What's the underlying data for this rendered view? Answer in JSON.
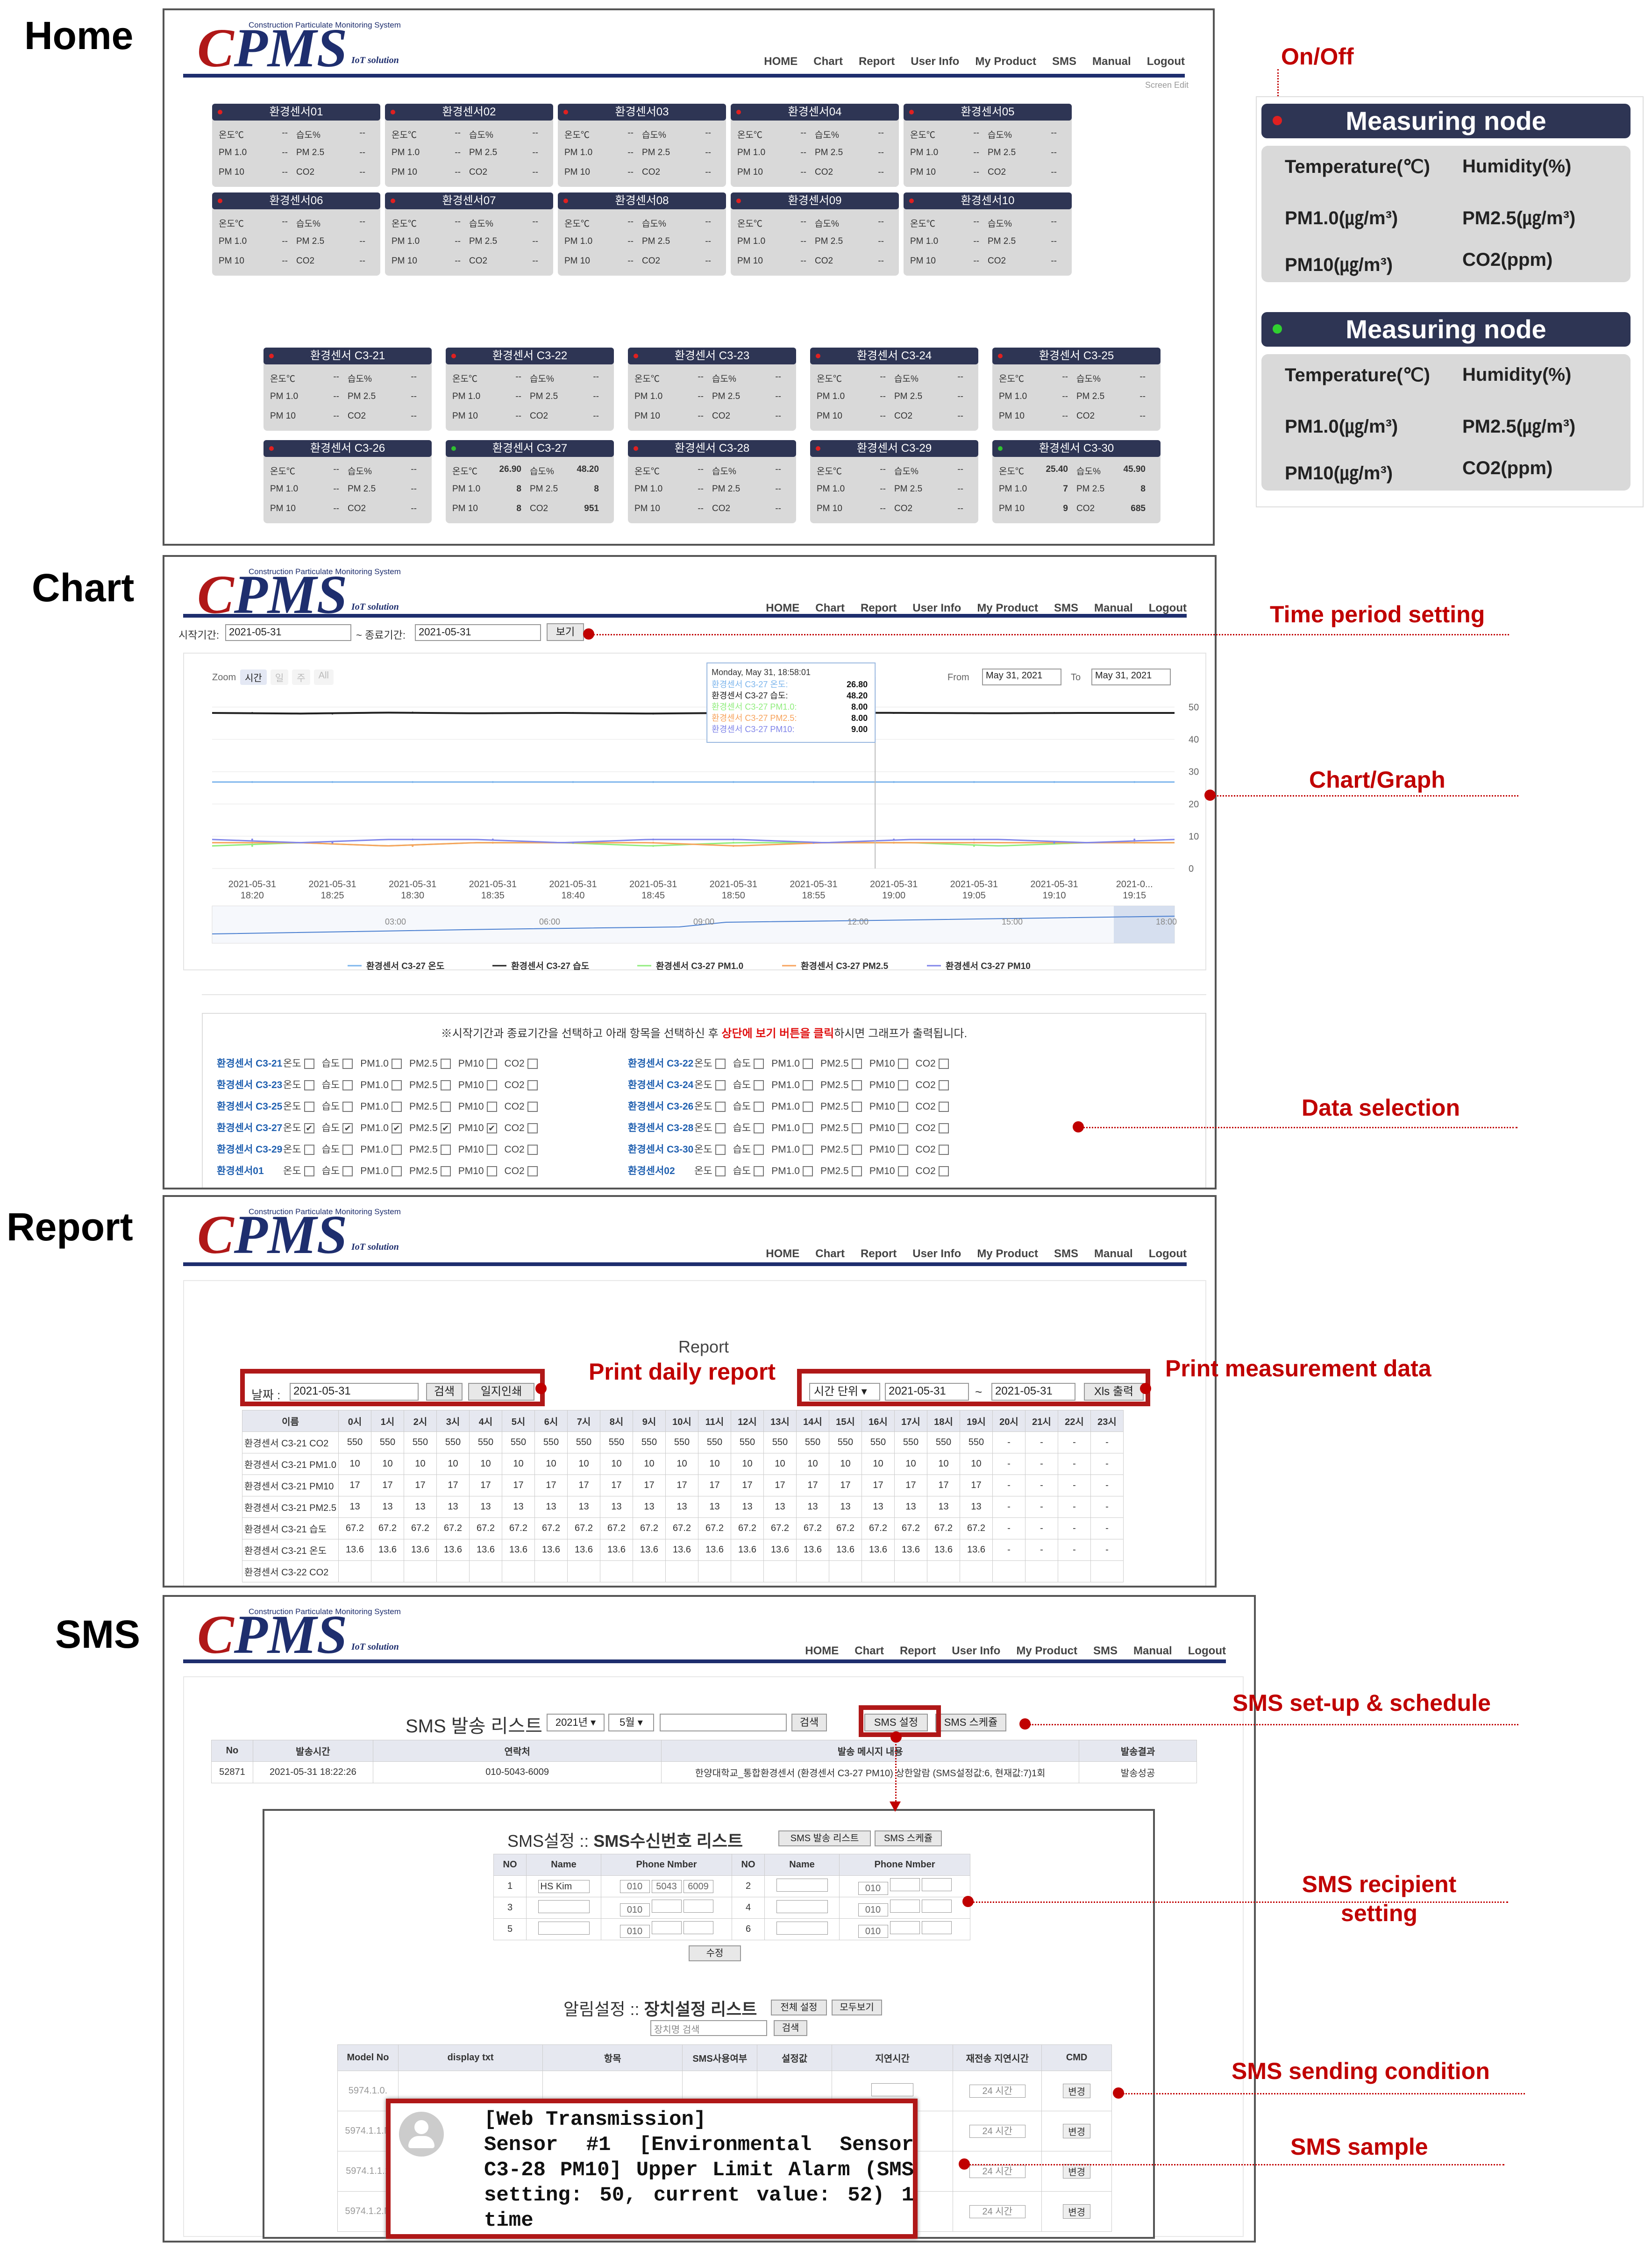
{
  "sections": {
    "home": "Home",
    "chart": "Chart",
    "report": "Report",
    "sms": "SMS"
  },
  "app": {
    "logo_letters": "CPMS",
    "logo_tagline": "Construction Particulate Monitoring System",
    "logo_iot": "IoT solution",
    "nav": [
      "HOME",
      "Chart",
      "Report",
      "User Info",
      "My Product",
      "SMS",
      "Manual",
      "Logout"
    ],
    "screen_edit": "Screen Edit"
  },
  "home": {
    "metric_labels": {
      "temp": "온도℃",
      "hum": "습도%",
      "pm1": "PM 1.0",
      "pm25": "PM 2.5",
      "pm10": "PM 10",
      "co2": "CO2",
      "empty": "--"
    },
    "cards_top": [
      {
        "name": "환경센서01",
        "on": false
      },
      {
        "name": "환경센서02",
        "on": false
      },
      {
        "name": "환경센서03",
        "on": false
      },
      {
        "name": "환경센서04",
        "on": false
      },
      {
        "name": "환경센서05",
        "on": false
      },
      {
        "name": "환경센서06",
        "on": false
      },
      {
        "name": "환경센서07",
        "on": false
      },
      {
        "name": "환경센서08",
        "on": false
      },
      {
        "name": "환경센서09",
        "on": false
      },
      {
        "name": "환경센서10",
        "on": false
      }
    ],
    "cards_bottom": [
      {
        "name": "환경센서 C3-21",
        "on": false
      },
      {
        "name": "환경센서 C3-22",
        "on": false
      },
      {
        "name": "환경센서 C3-23",
        "on": false
      },
      {
        "name": "환경센서 C3-24",
        "on": false
      },
      {
        "name": "환경센서 C3-25",
        "on": false
      },
      {
        "name": "환경센서 C3-26",
        "on": false
      },
      {
        "name": "환경센서 C3-27",
        "on": true,
        "temp": "26.90",
        "hum": "48.20",
        "pm1": "8",
        "pm25": "8",
        "pm10": "8",
        "co2": "951"
      },
      {
        "name": "환경센서 C3-28",
        "on": false
      },
      {
        "name": "환경센서 C3-29",
        "on": false
      },
      {
        "name": "환경센서 C3-30",
        "on": true,
        "temp": "25.40",
        "hum": "45.90",
        "pm1": "7",
        "pm25": "8",
        "pm10": "9",
        "co2": "685"
      }
    ],
    "legend": {
      "title": "On/Off",
      "node": "Measuring node",
      "temperature": "Temperature(℃)",
      "humidity": "Humidity(%)",
      "pm1": "PM1.0(㎍/m³)",
      "pm25": "PM2.5(㎍/m³)",
      "pm10": "PM10(㎍/m³)",
      "co2": "CO2(ppm)"
    }
  },
  "chart_page": {
    "start_label": "시작기간:",
    "start_value": "2021-05-31",
    "end_label": "~ 종료기간:",
    "end_value": "2021-05-31",
    "view_btn": "보기",
    "zoom_label": "Zoom",
    "zoom_buttons": [
      "시간",
      "일",
      "주",
      "All"
    ],
    "from_label": "From",
    "from_value": "May 31, 2021",
    "to_label": "To",
    "to_value": "May 31, 2021",
    "tooltip": {
      "date": "Monday, May 31, 18:58:01",
      "rows": [
        {
          "label": "환경센서 C3-27 온도:",
          "value": "26.80",
          "color": "#7cb5ec"
        },
        {
          "label": "환경센서 C3-27 습도:",
          "value": "48.20",
          "color": "#222222"
        },
        {
          "label": "환경센서 C3-27 PM1.0:",
          "value": "8.00",
          "color": "#90ed7d"
        },
        {
          "label": "환경센서 C3-27 PM2.5:",
          "value": "8.00",
          "color": "#f7a35c"
        },
        {
          "label": "환경센서 C3-27 PM10:",
          "value": "9.00",
          "color": "#8085e9"
        }
      ]
    },
    "navigator_ticks": [
      "03:00",
      "06:00",
      "09:00",
      "12:00",
      "15:00",
      "18:00"
    ],
    "instruction_pre": "※시작기간과 종료기간을 선택하고 아래 항목을 선택하신 후 ",
    "instruction_red": "상단에 보기 버튼을 클릭",
    "instruction_post": "하시면 그래프가 출력됩니다.",
    "item_labels": [
      "온도",
      "습도",
      "PM1.0",
      "PM2.5",
      "PM10",
      "CO2"
    ],
    "selection_rows": [
      [
        {
          "sensor": "환경센서 C3-21",
          "checked": []
        },
        {
          "sensor": "환경센서 C3-22",
          "checked": []
        }
      ],
      [
        {
          "sensor": "환경센서 C3-23",
          "checked": []
        },
        {
          "sensor": "환경센서 C3-24",
          "checked": []
        }
      ],
      [
        {
          "sensor": "환경센서 C3-25",
          "checked": []
        },
        {
          "sensor": "환경센서 C3-26",
          "checked": []
        }
      ],
      [
        {
          "sensor": "환경센서 C3-27",
          "checked": [
            0,
            1,
            2,
            3,
            4
          ]
        },
        {
          "sensor": "환경센서 C3-28",
          "checked": []
        }
      ],
      [
        {
          "sensor": "환경센서 C3-29",
          "checked": []
        },
        {
          "sensor": "환경센서 C3-30",
          "checked": []
        }
      ],
      [
        {
          "sensor": "환경센서01",
          "checked": []
        },
        {
          "sensor": "환경센서02",
          "checked": []
        }
      ]
    ]
  },
  "chart_data": {
    "type": "line",
    "x": [
      "2021-05-31 18:20",
      "2021-05-31 18:25",
      "2021-05-31 18:30",
      "2021-05-31 18:35",
      "2021-05-31 18:40",
      "2021-05-31 18:45",
      "2021-05-31 18:50",
      "2021-05-31 18:55",
      "2021-05-31 19:00",
      "2021-05-31 19:05",
      "2021-05-31 19:10",
      "2021-05-31 19:15"
    ],
    "x_tick_labels": [
      [
        "2021-05-31",
        "18:20"
      ],
      [
        "2021-05-31",
        "18:25"
      ],
      [
        "2021-05-31",
        "18:30"
      ],
      [
        "2021-05-31",
        "18:35"
      ],
      [
        "2021-05-31",
        "18:40"
      ],
      [
        "2021-05-31",
        "18:45"
      ],
      [
        "2021-05-31",
        "18:50"
      ],
      [
        "2021-05-31",
        "18:55"
      ],
      [
        "2021-05-31",
        "19:00"
      ],
      [
        "2021-05-31",
        "19:05"
      ],
      [
        "2021-05-31",
        "19:10"
      ],
      [
        "2021-0...",
        "19:15"
      ]
    ],
    "y_ticks": [
      0,
      10,
      20,
      30,
      40,
      50
    ],
    "ylim": [
      0,
      55
    ],
    "series": [
      {
        "name": "환경센서 C3-27 온도",
        "color": "#7cb5ec",
        "values": [
          26.8,
          26.8,
          26.8,
          26.8,
          26.8,
          26.8,
          26.8,
          26.8,
          26.8,
          26.8,
          26.8,
          26.8
        ]
      },
      {
        "name": "환경센서 C3-27 습도",
        "color": "#222222",
        "values": [
          48.2,
          48.0,
          48.3,
          48.1,
          48.2,
          48.0,
          48.2,
          48.3,
          48.2,
          48.1,
          48.2,
          48.2
        ]
      },
      {
        "name": "환경센서 C3-27 PM1.0",
        "color": "#90ed7d",
        "values": [
          7,
          8,
          7,
          8,
          8,
          7,
          8,
          8,
          8,
          7,
          8,
          8
        ]
      },
      {
        "name": "환경센서 C3-27 PM2.5",
        "color": "#f7a35c",
        "values": [
          8,
          8,
          7,
          8,
          8,
          8,
          7,
          8,
          8,
          8,
          8,
          8
        ]
      },
      {
        "name": "환경센서 C3-27 PM10",
        "color": "#8085e9",
        "values": [
          9,
          8,
          9,
          9,
          8,
          9,
          9,
          8,
          9,
          9,
          8,
          9
        ]
      }
    ],
    "legend_position": "bottom"
  },
  "report_page": {
    "title": "Report",
    "date_label": "날짜 :",
    "date_value": "2021-05-31",
    "search_btn": "검색",
    "print_btn": "일지인쇄",
    "unit_select": "시간 단위",
    "range_start": "2021-05-31",
    "range_sep": "~",
    "range_end": "2021-05-31",
    "xls_btn": "Xls 출력",
    "headers": [
      "이름",
      "0시",
      "1시",
      "2시",
      "3시",
      "4시",
      "5시",
      "6시",
      "7시",
      "8시",
      "9시",
      "10시",
      "11시",
      "12시",
      "13시",
      "14시",
      "15시",
      "16시",
      "17시",
      "18시",
      "19시",
      "20시",
      "21시",
      "22시",
      "23시"
    ],
    "rows": [
      {
        "name": "환경센서 C3-21 CO2",
        "value": "550"
      },
      {
        "name": "환경센서 C3-21 PM1.0",
        "value": "10"
      },
      {
        "name": "환경센서 C3-21 PM10",
        "value": "17"
      },
      {
        "name": "환경센서 C3-21 PM2.5",
        "value": "13"
      },
      {
        "name": "환경센서 C3-21 습도",
        "value": "67.2"
      },
      {
        "name": "환경센서 C3-21 온도",
        "value": "13.6"
      },
      {
        "name": "환경센서 C3-22 CO2",
        "value": ""
      }
    ],
    "filled_hours": 20,
    "dash": "-"
  },
  "sms_page": {
    "list_title": "SMS 발송 리스트",
    "year_select": "2021년",
    "month_select": "5월",
    "search_btn": "검색",
    "setup_btn": "SMS 설정",
    "schedule_btn": "SMS 스케쥴",
    "list_headers": [
      "No",
      "발송시간",
      "연락처",
      "발송 메시지 내용",
      "발송결과"
    ],
    "list_row": [
      "52871",
      "2021-05-31 18:22:26",
      "010-5043-6009",
      "한양대학교_통합환경센서 (환경센서 C3-27 PM10) 상한알람 (SMS설정값:6, 현재값:7)1회",
      "발송성공"
    ],
    "recip_title_pre": "SMS설정 :: ",
    "recip_title": "SMS수신번호 리스트",
    "recip_btn1": "SMS 발송 리스트",
    "recip_btn2": "SMS 스케쥴",
    "recip_headers": [
      "NO",
      "Name",
      "Phone Nmber",
      "NO",
      "Name",
      "Phone Nmber"
    ],
    "recip_rows": [
      {
        "no1": "1",
        "name1": "HS Kim",
        "p1": "010",
        "p2": "5043",
        "p3": "6009",
        "no2": "2",
        "pp": "010"
      },
      {
        "no1": "3",
        "name1": "",
        "p1": "010",
        "p2": "",
        "p3": "",
        "no2": "4",
        "pp": "010"
      },
      {
        "no1": "5",
        "name1": "",
        "p1": "010",
        "p2": "",
        "p3": "",
        "no2": "6",
        "pp": "010"
      }
    ],
    "modify_btn": "수정",
    "alarm_title_pre": "알림설정 :: ",
    "alarm_title": "장치설정 리스트",
    "alarm_btn1": "전체 설정",
    "alarm_btn2": "모두보기",
    "device_search_placeholder": "장치명 검색",
    "device_search_btn": "검색",
    "alarm_headers": [
      "Model No",
      "display txt",
      "항목",
      "SMS사용여부",
      "설정값",
      "지연시간",
      "재전송 지연시간",
      "CMD"
    ],
    "alarm_rows": [
      {
        "model": "5974.1.0.",
        "delay": "24 시간",
        "cmd": "변경"
      },
      {
        "model": "5974.1.1.N",
        "delay": "24 시간",
        "cmd": "변경"
      },
      {
        "model": "5974.1.1.1",
        "delay": "24 시간",
        "cmd": "변경"
      },
      {
        "model": "5974.1.2.N",
        "delay": "24 시간",
        "cmd": "변경"
      }
    ],
    "popup_lines": [
      "[Web Transmission]",
      "Sensor #1 [Environmental Sensor C3-28 PM10] Upper Limit Alarm (SMS setting: 50, current value: 52) 1 time"
    ]
  },
  "callouts": {
    "time_period": "Time period setting",
    "chart_graph": "Chart/Graph",
    "data_selection": "Data selection",
    "print_daily": "Print daily report",
    "print_measure": "Print measurement data",
    "sms_setup": "SMS set-up & schedule",
    "sms_recipient": "SMS recipient setting",
    "sms_condition": "SMS sending condition",
    "sms_sample": "SMS sample"
  }
}
